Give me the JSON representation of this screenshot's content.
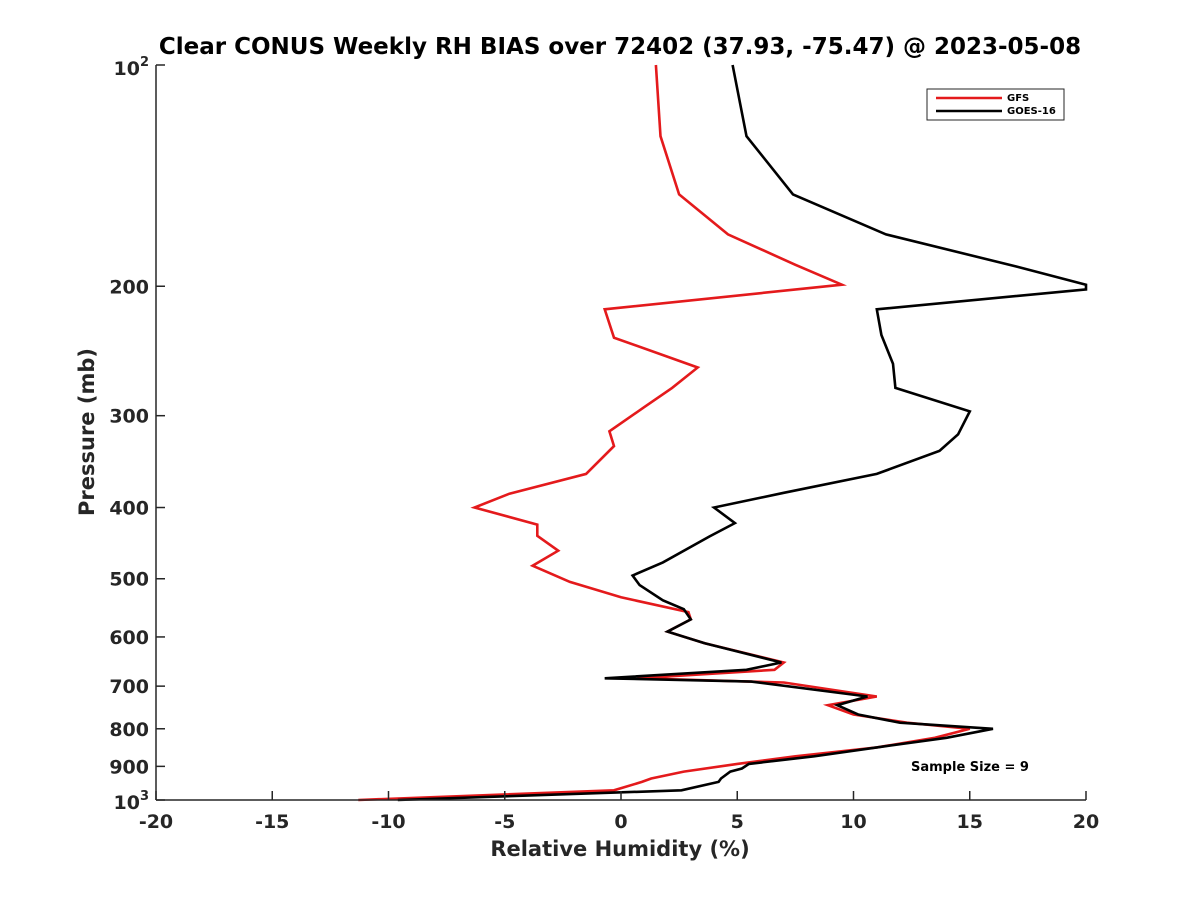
{
  "chart_data": {
    "type": "line",
    "title": "Clear CONUS Weekly RH BIAS over 72402 (37.93, -75.47) @ 2023-05-08",
    "xlabel": "Relative Humidity (%)",
    "ylabel": "Pressure (mb)",
    "xlim": [
      -20,
      20
    ],
    "ylim": [
      100,
      1000
    ],
    "y_scale": "log",
    "y_reversed": true,
    "x_ticks": [
      -20,
      -15,
      -10,
      -5,
      0,
      5,
      10,
      15,
      20
    ],
    "x_tick_labels": [
      "-20",
      "-15",
      "-10",
      "-5",
      "0",
      "5",
      "10",
      "15",
      "20"
    ],
    "y_ticks": [
      200,
      300,
      400,
      500,
      600,
      700,
      800,
      900
    ],
    "y_tick_labels": [
      "200",
      "300",
      "400",
      "500",
      "600",
      "700",
      "800",
      "900"
    ],
    "y_end_labels": {
      "top_base": "10",
      "top_exp": "2",
      "bottom_base": "10",
      "bottom_exp": "3"
    },
    "grid": false,
    "legend_position": "top-right",
    "annotation": "Sample Size = 9",
    "series": [
      {
        "name": "GFS",
        "color": "#e41a1c",
        "points": [
          [
            1.5,
            100
          ],
          [
            1.7,
            125
          ],
          [
            2.5,
            150
          ],
          [
            4.6,
            170
          ],
          [
            7.5,
            187
          ],
          [
            9.5,
            199
          ],
          [
            -0.7,
            215
          ],
          [
            -0.3,
            235
          ],
          [
            3.3,
            258
          ],
          [
            2.2,
            275
          ],
          [
            1.0,
            292
          ],
          [
            -0.5,
            315
          ],
          [
            -0.3,
            330
          ],
          [
            -1.5,
            360
          ],
          [
            -4.8,
            383
          ],
          [
            -6.3,
            400
          ],
          [
            -3.6,
            422
          ],
          [
            -3.6,
            437
          ],
          [
            -2.7,
            458
          ],
          [
            -3.8,
            480
          ],
          [
            -2.2,
            505
          ],
          [
            0.0,
            530
          ],
          [
            2.9,
            555
          ],
          [
            3.0,
            568
          ],
          [
            2.0,
            590
          ],
          [
            3.6,
            612
          ],
          [
            7.0,
            650
          ],
          [
            6.6,
            665
          ],
          [
            0.7,
            683
          ],
          [
            7.0,
            692
          ],
          [
            11.0,
            723
          ],
          [
            8.9,
            743
          ],
          [
            10.0,
            765
          ],
          [
            12.3,
            785
          ],
          [
            15.0,
            800
          ],
          [
            13.5,
            823
          ],
          [
            11.0,
            848
          ],
          [
            7.5,
            872
          ],
          [
            5.0,
            893
          ],
          [
            2.7,
            915
          ],
          [
            1.3,
            935
          ],
          [
            0.9,
            945
          ],
          [
            -0.3,
            970
          ],
          [
            -11.3,
            1000
          ]
        ]
      },
      {
        "name": "GOES-16",
        "color": "#000000",
        "points": [
          [
            4.8,
            100
          ],
          [
            5.4,
            125
          ],
          [
            7.4,
            150
          ],
          [
            11.4,
            170
          ],
          [
            17.0,
            188
          ],
          [
            20.0,
            199
          ],
          [
            20.0,
            202
          ],
          [
            11.0,
            215
          ],
          [
            11.2,
            233
          ],
          [
            11.7,
            255
          ],
          [
            11.8,
            275
          ],
          [
            15.0,
            296
          ],
          [
            14.5,
            318
          ],
          [
            13.7,
            335
          ],
          [
            11.0,
            360
          ],
          [
            7.0,
            382
          ],
          [
            4.0,
            400
          ],
          [
            4.9,
            420
          ],
          [
            3.8,
            438
          ],
          [
            1.8,
            475
          ],
          [
            0.5,
            495
          ],
          [
            0.8,
            510
          ],
          [
            1.8,
            535
          ],
          [
            2.7,
            550
          ],
          [
            3.0,
            568
          ],
          [
            2.0,
            590
          ],
          [
            3.6,
            612
          ],
          [
            6.9,
            650
          ],
          [
            5.4,
            665
          ],
          [
            -0.7,
            683
          ],
          [
            5.6,
            690
          ],
          [
            10.6,
            723
          ],
          [
            9.3,
            743
          ],
          [
            10.2,
            765
          ],
          [
            12.0,
            785
          ],
          [
            16.0,
            800
          ],
          [
            14.0,
            823
          ],
          [
            11.0,
            848
          ],
          [
            8.3,
            872
          ],
          [
            5.5,
            893
          ],
          [
            5.2,
            906
          ],
          [
            4.7,
            915
          ],
          [
            4.3,
            935
          ],
          [
            4.2,
            945
          ],
          [
            2.6,
            970
          ],
          [
            -9.6,
            1000
          ]
        ]
      }
    ]
  }
}
